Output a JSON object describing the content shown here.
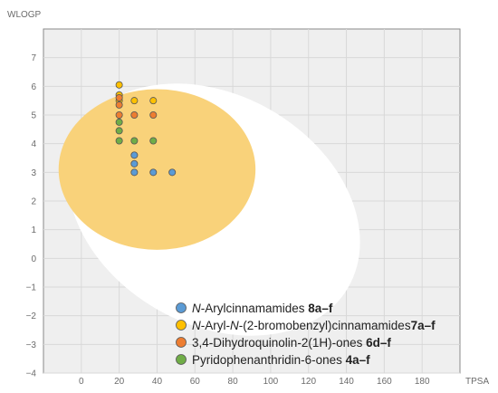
{
  "chart_data": {
    "type": "scatter",
    "title": "",
    "xlabel": "TPSA",
    "ylabel": "WLOGP",
    "xlim": [
      -20,
      200
    ],
    "ylim": [
      -4,
      8
    ],
    "x_ticks": [
      0,
      20,
      40,
      60,
      80,
      100,
      120,
      140,
      160,
      180
    ],
    "y_ticks": [
      -4,
      -3,
      -2,
      -1,
      0,
      1,
      2,
      3,
      4,
      5,
      6,
      7
    ],
    "grid": true,
    "legend_placement": "bottom-right",
    "regions": [
      {
        "shape": "ellipse",
        "color": "#ffffff",
        "center": [
          70,
          1.7
        ],
        "radii": [
          82,
          4.0
        ],
        "rotation_deg": 30
      },
      {
        "shape": "ellipse",
        "color": "#f9d27a",
        "center": [
          40,
          3.1
        ],
        "radii": [
          52,
          2.8
        ],
        "rotation_deg": 0
      }
    ],
    "series": [
      {
        "legend_parts": [
          {
            "text": "N",
            "style": "italic"
          },
          {
            "text": "-Arylcinnamamides ",
            "style": "normal"
          },
          {
            "text": "8a–f",
            "style": "bold"
          }
        ],
        "color": "#5b9bd5",
        "points": [
          [
            28,
            3.6
          ],
          [
            28,
            3.3
          ],
          [
            28,
            3.0
          ],
          [
            38,
            3.0
          ],
          [
            48,
            3.0
          ]
        ]
      },
      {
        "legend_parts": [
          {
            "text": "N",
            "style": "italic"
          },
          {
            "text": "-Aryl-",
            "style": "normal"
          },
          {
            "text": "N",
            "style": "italic"
          },
          {
            "text": "-(2-bromobenzyl)cinnamamides",
            "style": "normal"
          },
          {
            "text": "7a–f",
            "style": "bold"
          }
        ],
        "color": "#ffc000",
        "points": [
          [
            20,
            6.05
          ],
          [
            20,
            5.7
          ],
          [
            28,
            5.5
          ],
          [
            38,
            5.5
          ],
          [
            20,
            5.5
          ]
        ]
      },
      {
        "legend_parts": [
          {
            "text": "3,4-Dihydroquinolin-2(1H)-ones ",
            "style": "normal"
          },
          {
            "text": "6d–f",
            "style": "bold"
          }
        ],
        "color": "#ed7d31",
        "points": [
          [
            20,
            5.6
          ],
          [
            20,
            5.35
          ],
          [
            20,
            5.0
          ],
          [
            28,
            5.0
          ],
          [
            38,
            5.0
          ]
        ]
      },
      {
        "legend_parts": [
          {
            "text": "Pyridophenanthridin-6-ones ",
            "style": "normal"
          },
          {
            "text": "4a–f",
            "style": "bold"
          }
        ],
        "color": "#70ad47",
        "points": [
          [
            20,
            4.75
          ],
          [
            20,
            4.45
          ],
          [
            20,
            4.1
          ],
          [
            28,
            4.1
          ],
          [
            38,
            4.1
          ]
        ]
      }
    ]
  }
}
